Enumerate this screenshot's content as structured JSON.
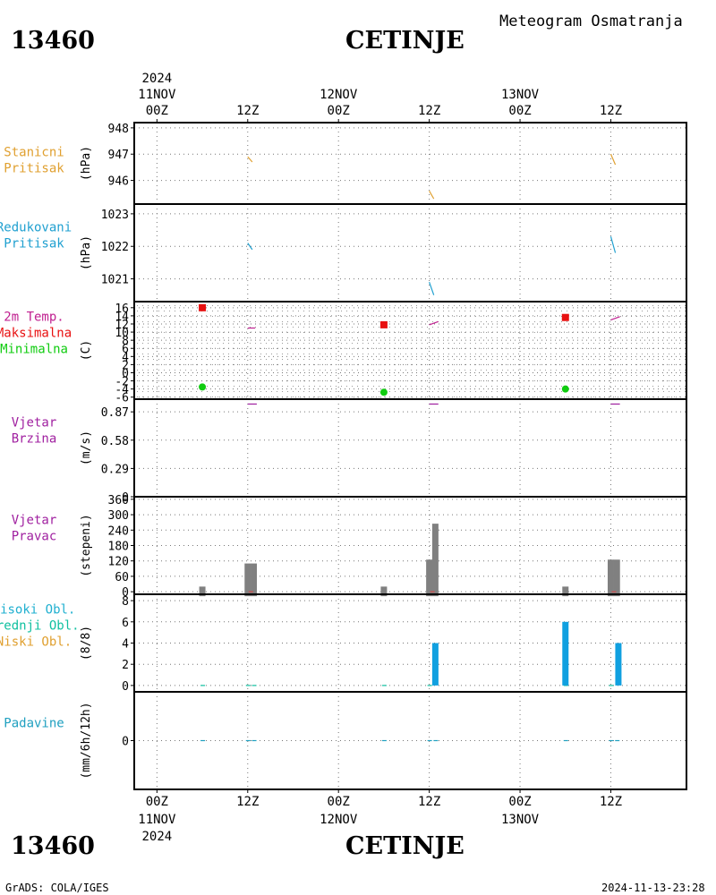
{
  "header": {
    "station_id": "13460",
    "station_name": "CETINJE",
    "product": "Meteogram Osmatranja"
  },
  "footer": {
    "station_id": "13460",
    "station_name": "CETINJE",
    "credit": "GrADS: COLA/IGES",
    "timestamp": "2024-11-13-23:28"
  },
  "colors": {
    "pressure": "#e0a030",
    "reduced_pressure": "#20a0d0",
    "temp": "#c02090",
    "tmax": "#e81010",
    "tmin": "#10cc10",
    "wind": "#a020a0",
    "dir_bar": "#808080",
    "high_cloud": "#20b0d0",
    "mid_cloud": "#10c0a0",
    "low_cloud": "#e0a030",
    "cloud_bar": "#10a0e0",
    "precip": "#20a0c0"
  },
  "chart_data": {
    "type": "meteogram",
    "time_axis": {
      "top_labels": [
        {
          "hour": "00Z",
          "day": "11NOV",
          "year": "2024",
          "t": 0
        },
        {
          "hour": "12Z",
          "t": 12
        },
        {
          "hour": "00Z",
          "day": "12NOV",
          "t": 24
        },
        {
          "hour": "12Z",
          "t": 36
        },
        {
          "hour": "00Z",
          "day": "13NOV",
          "t": 48
        },
        {
          "hour": "12Z",
          "t": 60
        }
      ],
      "bottom_labels": [
        {
          "hour": "00Z",
          "day": "11NOV",
          "year": "2024",
          "t": 0
        },
        {
          "hour": "12Z",
          "t": 12
        },
        {
          "hour": "00Z",
          "day": "12NOV",
          "t": 24
        },
        {
          "hour": "12Z",
          "t": 36
        },
        {
          "hour": "00Z",
          "day": "13NOV",
          "t": 48
        },
        {
          "hour": "12Z",
          "t": 60
        }
      ],
      "range_hours": [
        -3,
        70
      ]
    },
    "panels": [
      {
        "id": "station-pressure",
        "labels": [
          "Stanicni",
          "Pritisak"
        ],
        "label_colors": [
          "#e0a030",
          "#e0a030"
        ],
        "unit": "(hPa)",
        "ylim": [
          945.1,
          948.2
        ],
        "ticks": [
          948,
          947,
          946
        ],
        "series": [
          {
            "color": "#e0a030",
            "segments": [
              [
                [
                  12,
                  946.9
                ],
                [
                  12.6,
                  946.7
                ]
              ],
              [
                [
                  36,
                  945.6
                ],
                [
                  36.6,
                  945.3
                ]
              ],
              [
                [
                  60,
                  947.0
                ],
                [
                  60.6,
                  946.6
                ]
              ]
            ]
          }
        ]
      },
      {
        "id": "reduced-pressure",
        "labels": [
          "Redukovani",
          "Pritisak"
        ],
        "label_colors": [
          "#20a0d0",
          "#20a0d0"
        ],
        "unit": "(hPa)",
        "ylim": [
          1020.3,
          1023.3
        ],
        "ticks": [
          1023,
          1022,
          1021
        ],
        "series": [
          {
            "color": "#20a0d0",
            "segments": [
              [
                [
                  12,
                  1022.1
                ],
                [
                  12.6,
                  1021.9
                ]
              ],
              [
                [
                  36,
                  1020.9
                ],
                [
                  36.6,
                  1020.5
                ]
              ],
              [
                [
                  60,
                  1022.3
                ],
                [
                  60.6,
                  1021.8
                ]
              ]
            ]
          }
        ]
      },
      {
        "id": "temperature",
        "labels": [
          "2m Temp.",
          "Maksimalna",
          "Minimalna"
        ],
        "label_colors": [
          "#c02090",
          "#e81010",
          "#10cc10"
        ],
        "unit": "(C)",
        "ylim": [
          -6.5,
          17.5
        ],
        "ticks": [
          16,
          14,
          12,
          10,
          8,
          6,
          4,
          2,
          0,
          -2,
          -4,
          -6
        ],
        "dotted_background": true,
        "series": [
          {
            "color": "#c02090",
            "segments": [
              [
                [
                  12,
                  11
                ],
                [
                  13,
                  11
                ]
              ],
              [
                [
                  36,
                  11.8
                ],
                [
                  37.2,
                  12.6
                ]
              ],
              [
                [
                  60,
                  13
                ],
                [
                  61.2,
                  13.8
                ]
              ]
            ]
          }
        ],
        "points_max": [
          {
            "t": 6,
            "v": 16
          },
          {
            "t": 30,
            "v": 11.8
          },
          {
            "t": 54,
            "v": 13.6
          }
        ],
        "points_min": [
          {
            "t": 6,
            "v": -3.5
          },
          {
            "t": 30,
            "v": -4.8
          },
          {
            "t": 54,
            "v": -4
          }
        ]
      },
      {
        "id": "wind-speed",
        "labels": [
          "Vjetar",
          "Brzina"
        ],
        "label_colors": [
          "#a020a0",
          "#a020a0"
        ],
        "unit": "(m/s)",
        "ylim": [
          0,
          1.0
        ],
        "ticks": [
          0.87,
          0.58,
          0.29,
          0
        ],
        "series": [
          {
            "color": "#a020a0",
            "segments": [
              [
                [
                  12,
                  0.95
                ],
                [
                  13.2,
                  0.95
                ]
              ],
              [
                [
                  36,
                  0.95
                ],
                [
                  37.2,
                  0.95
                ]
              ],
              [
                [
                  60,
                  0.95
                ],
                [
                  61.2,
                  0.95
                ]
              ]
            ]
          }
        ]
      },
      {
        "id": "wind-direction",
        "labels": [
          "Vjetar",
          "Pravac"
        ],
        "label_colors": [
          "#a020a0",
          "#a020a0"
        ],
        "unit": "(stepeni)",
        "ylim": [
          -10,
          370
        ],
        "ticks": [
          360,
          300,
          240,
          180,
          120,
          60,
          0
        ],
        "bars": [
          {
            "t": 6,
            "v": 20
          },
          {
            "t": 12,
            "v": 110
          },
          {
            "t": 12.8,
            "v": 110
          },
          {
            "t": 30,
            "v": 20
          },
          {
            "t": 36,
            "v": 125
          },
          {
            "t": 36.8,
            "v": 265
          },
          {
            "t": 54,
            "v": 20
          },
          {
            "t": 60,
            "v": 125
          },
          {
            "t": 60.8,
            "v": 125
          }
        ]
      },
      {
        "id": "clouds",
        "labels": [
          "Visoki Obl.",
          "Srednji Obl.",
          "Niski Obl."
        ],
        "label_colors": [
          "#20b0d0",
          "#10c0a0",
          "#e0a030"
        ],
        "unit": "(8/8)",
        "ylim": [
          -0.6,
          8.6
        ],
        "ticks": [
          8,
          6,
          4,
          2,
          0
        ],
        "bars": [
          {
            "t": 36.8,
            "v": 4
          },
          {
            "t": 54,
            "v": 6
          },
          {
            "t": 61,
            "v": 4
          }
        ],
        "ticks_green": [
          6,
          12,
          12.8,
          30,
          36,
          54,
          60
        ]
      },
      {
        "id": "precipitation",
        "labels": [
          "Padavine"
        ],
        "label_colors": [
          "#20a0c0"
        ],
        "unit": "(mm/6h/12h)",
        "ylim": [
          -1,
          1
        ],
        "ticks": [
          0
        ],
        "marks": [
          6,
          12,
          12.8,
          30,
          36,
          36.8,
          54,
          60,
          60.8
        ]
      }
    ]
  }
}
